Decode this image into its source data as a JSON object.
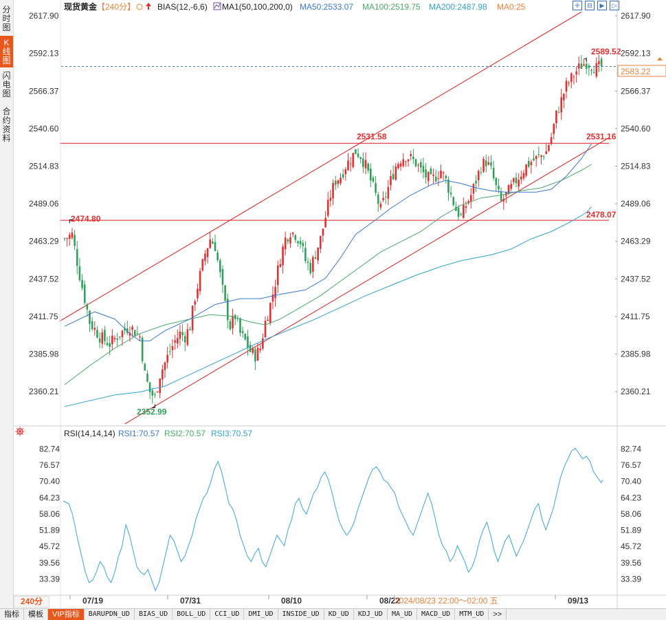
{
  "left_tabs": [
    {
      "label": "分时图",
      "active": false
    },
    {
      "label": "K线图",
      "active": true
    },
    {
      "label": "闪电图",
      "active": false
    },
    {
      "label": "合约资料",
      "active": false
    }
  ],
  "header": {
    "symbol": "现货黄金",
    "period_tag": "【240分】",
    "bias_label": "BIAS(12,-6,6)",
    "ma_label": "MA1(50,100,200,0)",
    "ma50": "MA50:2533.07",
    "ma100": "MA100:2519.75",
    "ma200": "MA200:2487.98",
    "ma0": "MA0:25"
  },
  "tool_icons": [
    "expand-icon",
    "contract-icon",
    "forward-icon",
    "step-icon"
  ],
  "price_axis_labels": [
    "2617.90",
    "2592.13",
    "2566.37",
    "2540.60",
    "2514.83",
    "2489.06",
    "2463.29",
    "2437.52",
    "2411.75",
    "2385.98",
    "2360.21"
  ],
  "rsi_header": {
    "title": "RSI(14,14,14)",
    "rsi1": "RSI1:70.57",
    "rsi2": "RSI2:70.57",
    "rsi3": "RSI3:70.57"
  },
  "rsi_axis_labels": [
    "82.74",
    "76.57",
    "70.40",
    "64.23",
    "58.06",
    "51.89",
    "45.72",
    "39.56",
    "33.39"
  ],
  "annotations": {
    "high": "2589.52",
    "current": "2583.22",
    "level_2531": "2531.58",
    "level_2531_right": "2531.16",
    "level_2474": "2474.80",
    "level_2478": "2478.07",
    "low": "2352.99"
  },
  "date_labels": [
    "07/19",
    "07/31",
    "08/10",
    "08/22",
    "09/13"
  ],
  "crosshair_time": "2024/08/23 22:00～02:00 五",
  "period_badge": "240分",
  "bottom_tabs": [
    {
      "label": "指标",
      "active": false,
      "mono": false
    },
    {
      "label": "模板",
      "active": false,
      "mono": false
    },
    {
      "label": "VIP指标",
      "active": true,
      "mono": false
    },
    {
      "label": "BARUPDN_UD",
      "active": false,
      "mono": true
    },
    {
      "label": "BIAS_UD",
      "active": false,
      "mono": true
    },
    {
      "label": "BOLL_UD",
      "active": false,
      "mono": true
    },
    {
      "label": "CCI_UD",
      "active": false,
      "mono": true
    },
    {
      "label": "DMI_UD",
      "active": false,
      "mono": true
    },
    {
      "label": "INSIDE_UD",
      "active": false,
      "mono": true
    },
    {
      "label": "KD_UD",
      "active": false,
      "mono": true
    },
    {
      "label": "KDJ_UD",
      "active": false,
      "mono": true
    },
    {
      "label": "MA_UD",
      "active": false,
      "mono": true
    },
    {
      "label": "MACD_UD",
      "active": false,
      "mono": true
    },
    {
      "label": "MTM_UD",
      "active": false,
      "mono": true
    },
    {
      "label": ">>",
      "active": false,
      "mono": false
    }
  ],
  "colors": {
    "up": "#e03030",
    "down": "#2fa05a",
    "ma50": "#3a78c9",
    "ma100": "#46a86a",
    "ma200": "#2fa3c9",
    "trend": "#d81e1e",
    "rsi": "#3aa3d6",
    "current_price": "#e8823a"
  },
  "chart_data": {
    "type": "candlestick",
    "period": "240分",
    "ylim": [
      2340.0,
      2625.0
    ],
    "x_dates": [
      "07/19",
      "07/31",
      "08/10",
      "08/22",
      "09/13"
    ],
    "close_path": [
      [
        0,
        2465
      ],
      [
        3,
        2468
      ],
      [
        6,
        2440
      ],
      [
        10,
        2408
      ],
      [
        14,
        2398
      ],
      [
        18,
        2393
      ],
      [
        22,
        2400
      ],
      [
        26,
        2405
      ],
      [
        30,
        2398
      ],
      [
        32,
        2372
      ],
      [
        34,
        2360
      ],
      [
        36,
        2356
      ],
      [
        38,
        2372
      ],
      [
        40,
        2380
      ],
      [
        42,
        2388
      ],
      [
        44,
        2395
      ],
      [
        46,
        2400
      ],
      [
        48,
        2398
      ],
      [
        50,
        2405
      ],
      [
        52,
        2425
      ],
      [
        54,
        2440
      ],
      [
        56,
        2455
      ],
      [
        58,
        2465
      ],
      [
        60,
        2460
      ],
      [
        62,
        2440
      ],
      [
        64,
        2420
      ],
      [
        66,
        2405
      ],
      [
        68,
        2412
      ],
      [
        70,
        2400
      ],
      [
        72,
        2395
      ],
      [
        74,
        2388
      ],
      [
        76,
        2385
      ],
      [
        78,
        2390
      ],
      [
        80,
        2408
      ],
      [
        82,
        2420
      ],
      [
        84,
        2435
      ],
      [
        86,
        2452
      ],
      [
        88,
        2465
      ],
      [
        90,
        2470
      ],
      [
        92,
        2468
      ],
      [
        94,
        2463
      ],
      [
        96,
        2450
      ],
      [
        98,
        2445
      ],
      [
        100,
        2455
      ],
      [
        102,
        2465
      ],
      [
        104,
        2480
      ],
      [
        106,
        2495
      ],
      [
        108,
        2505
      ],
      [
        110,
        2508
      ],
      [
        112,
        2515
      ],
      [
        114,
        2520
      ],
      [
        116,
        2525
      ],
      [
        118,
        2522
      ],
      [
        120,
        2515
      ],
      [
        122,
        2505
      ],
      [
        124,
        2495
      ],
      [
        126,
        2485
      ],
      [
        128,
        2495
      ],
      [
        130,
        2505
      ],
      [
        132,
        2515
      ],
      [
        134,
        2520
      ],
      [
        136,
        2522
      ],
      [
        138,
        2520
      ],
      [
        140,
        2517
      ],
      [
        142,
        2512
      ],
      [
        144,
        2508
      ],
      [
        146,
        2505
      ],
      [
        148,
        2508
      ],
      [
        150,
        2512
      ],
      [
        152,
        2505
      ],
      [
        154,
        2495
      ],
      [
        156,
        2485
      ],
      [
        158,
        2480
      ],
      [
        160,
        2488
      ],
      [
        162,
        2495
      ],
      [
        164,
        2505
      ],
      [
        166,
        2515
      ],
      [
        168,
        2518
      ],
      [
        170,
        2512
      ],
      [
        172,
        2500
      ],
      [
        174,
        2490
      ],
      [
        176,
        2495
      ],
      [
        178,
        2500
      ],
      [
        180,
        2505
      ],
      [
        182,
        2510
      ],
      [
        184,
        2515
      ],
      [
        186,
        2518
      ],
      [
        188,
        2520
      ],
      [
        190,
        2522
      ],
      [
        192,
        2525
      ],
      [
        194,
        2535
      ],
      [
        196,
        2550
      ],
      [
        198,
        2560
      ],
      [
        200,
        2570
      ],
      [
        202,
        2575
      ],
      [
        204,
        2580
      ],
      [
        206,
        2584
      ],
      [
        208,
        2586
      ],
      [
        210,
        2584
      ],
      [
        212,
        2582
      ],
      [
        214,
        2583
      ]
    ],
    "ma50_path": [
      [
        0,
        2405
      ],
      [
        12,
        2415
      ],
      [
        20,
        2410
      ],
      [
        26,
        2400
      ],
      [
        30,
        2395
      ],
      [
        34,
        2395
      ],
      [
        40,
        2402
      ],
      [
        50,
        2410
      ],
      [
        60,
        2420
      ],
      [
        70,
        2424
      ],
      [
        78,
        2424
      ],
      [
        86,
        2427
      ],
      [
        96,
        2430
      ],
      [
        104,
        2438
      ],
      [
        110,
        2452
      ],
      [
        116,
        2468
      ],
      [
        124,
        2478
      ],
      [
        130,
        2486
      ],
      [
        138,
        2495
      ],
      [
        146,
        2502
      ],
      [
        152,
        2505
      ],
      [
        158,
        2503
      ],
      [
        164,
        2500
      ],
      [
        170,
        2498
      ],
      [
        176,
        2497
      ],
      [
        182,
        2497
      ],
      [
        188,
        2497
      ],
      [
        194,
        2499
      ],
      [
        200,
        2508
      ],
      [
        206,
        2520
      ],
      [
        210,
        2530
      ]
    ],
    "ma100_path": [
      [
        0,
        2365
      ],
      [
        10,
        2378
      ],
      [
        20,
        2390
      ],
      [
        30,
        2400
      ],
      [
        40,
        2406
      ],
      [
        50,
        2410
      ],
      [
        58,
        2413
      ],
      [
        66,
        2412
      ],
      [
        74,
        2408
      ],
      [
        80,
        2406
      ],
      [
        86,
        2410
      ],
      [
        94,
        2418
      ],
      [
        102,
        2426
      ],
      [
        110,
        2436
      ],
      [
        118,
        2446
      ],
      [
        126,
        2456
      ],
      [
        134,
        2463
      ],
      [
        142,
        2470
      ],
      [
        150,
        2480
      ],
      [
        158,
        2488
      ],
      [
        166,
        2493
      ],
      [
        174,
        2495
      ],
      [
        182,
        2498
      ],
      [
        190,
        2500
      ],
      [
        198,
        2505
      ],
      [
        206,
        2512
      ],
      [
        210,
        2516
      ]
    ],
    "ma200_path": [
      [
        0,
        2350
      ],
      [
        10,
        2354
      ],
      [
        20,
        2358
      ],
      [
        30,
        2360
      ],
      [
        40,
        2364
      ],
      [
        50,
        2372
      ],
      [
        60,
        2380
      ],
      [
        70,
        2388
      ],
      [
        80,
        2396
      ],
      [
        90,
        2403
      ],
      [
        100,
        2410
      ],
      [
        110,
        2418
      ],
      [
        120,
        2426
      ],
      [
        130,
        2433
      ],
      [
        140,
        2440
      ],
      [
        150,
        2446
      ],
      [
        158,
        2450
      ],
      [
        164,
        2452
      ],
      [
        170,
        2454
      ],
      [
        178,
        2458
      ],
      [
        186,
        2465
      ],
      [
        194,
        2470
      ],
      [
        202,
        2477
      ],
      [
        208,
        2483
      ],
      [
        210,
        2487
      ]
    ],
    "trend_lines": [
      {
        "from": [
          -2,
          2408.5
        ],
        "to": [
          206,
          2620.6
        ]
      },
      {
        "from": [
          24,
          2338.1
        ],
        "to": [
          217,
          2534.4
        ]
      },
      {
        "from": [
          -2,
          2530.5
        ],
        "to": [
          217,
          2530.5
        ]
      },
      {
        "from": [
          -2,
          2477.7
        ],
        "to": [
          217,
          2477.7
        ]
      }
    ],
    "rsi_ylim": [
      28.0,
      86.0
    ],
    "rsi_path": [
      [
        0,
        63
      ],
      [
        3,
        62
      ],
      [
        5,
        58
      ],
      [
        8,
        48
      ],
      [
        10,
        42
      ],
      [
        12,
        36
      ],
      [
        14,
        32
      ],
      [
        16,
        33
      ],
      [
        18,
        36
      ],
      [
        20,
        40
      ],
      [
        22,
        38
      ],
      [
        24,
        34
      ],
      [
        26,
        32
      ],
      [
        28,
        36
      ],
      [
        30,
        42
      ],
      [
        32,
        46
      ],
      [
        34,
        54
      ],
      [
        36,
        50
      ],
      [
        38,
        44
      ],
      [
        40,
        38
      ],
      [
        42,
        36
      ],
      [
        44,
        35
      ],
      [
        46,
        37
      ],
      [
        48,
        33
      ],
      [
        50,
        29
      ],
      [
        52,
        32
      ],
      [
        54,
        38
      ],
      [
        56,
        44
      ],
      [
        58,
        50
      ],
      [
        60,
        48
      ],
      [
        62,
        44
      ],
      [
        64,
        40
      ],
      [
        66,
        42
      ],
      [
        68,
        46
      ],
      [
        70,
        50
      ],
      [
        72,
        56
      ],
      [
        74,
        60
      ],
      [
        76,
        64
      ],
      [
        78,
        66
      ],
      [
        80,
        70
      ],
      [
        82,
        75
      ],
      [
        84,
        78
      ],
      [
        86,
        74
      ],
      [
        88,
        68
      ],
      [
        90,
        62
      ],
      [
        92,
        60
      ],
      [
        94,
        56
      ],
      [
        96,
        50
      ],
      [
        98,
        46
      ],
      [
        100,
        42
      ],
      [
        102,
        40
      ],
      [
        104,
        43
      ],
      [
        106,
        45
      ],
      [
        108,
        40
      ],
      [
        110,
        38
      ],
      [
        112,
        42
      ],
      [
        114,
        46
      ],
      [
        116,
        50
      ],
      [
        118,
        48
      ],
      [
        120,
        46
      ],
      [
        122,
        52
      ],
      [
        124,
        56
      ],
      [
        126,
        62
      ],
      [
        128,
        64
      ],
      [
        130,
        60
      ],
      [
        132,
        58
      ],
      [
        134,
        62
      ],
      [
        136,
        66
      ],
      [
        138,
        68
      ],
      [
        140,
        72
      ],
      [
        142,
        74
      ],
      [
        144,
        71
      ],
      [
        146,
        66
      ],
      [
        148,
        60
      ],
      [
        150,
        55
      ],
      [
        152,
        52
      ],
      [
        154,
        50
      ],
      [
        156,
        52
      ],
      [
        158,
        55
      ],
      [
        160,
        60
      ],
      [
        162,
        64
      ],
      [
        164,
        68
      ],
      [
        166,
        72
      ],
      [
        168,
        75
      ],
      [
        170,
        76
      ],
      [
        172,
        74
      ],
      [
        174,
        71
      ],
      [
        176,
        70
      ],
      [
        178,
        68
      ],
      [
        180,
        66
      ],
      [
        182,
        61
      ],
      [
        184,
        58
      ],
      [
        186,
        55
      ],
      [
        188,
        52
      ],
      [
        190,
        50
      ],
      [
        192,
        54
      ],
      [
        194,
        58
      ],
      [
        196,
        62
      ],
      [
        198,
        66
      ],
      [
        200,
        62
      ],
      [
        202,
        56
      ],
      [
        204,
        50
      ],
      [
        206,
        46
      ],
      [
        208,
        44
      ],
      [
        210,
        40
      ],
      [
        212,
        42
      ],
      [
        214,
        46
      ],
      [
        216,
        43
      ],
      [
        218,
        40
      ],
      [
        220,
        36
      ],
      [
        222,
        38
      ],
      [
        224,
        42
      ],
      [
        226,
        48
      ],
      [
        228,
        52
      ],
      [
        230,
        55
      ],
      [
        232,
        50
      ],
      [
        234,
        44
      ],
      [
        236,
        40
      ],
      [
        238,
        44
      ],
      [
        240,
        48
      ],
      [
        242,
        50
      ],
      [
        244,
        46
      ],
      [
        246,
        42
      ],
      [
        248,
        45
      ],
      [
        250,
        48
      ],
      [
        252,
        52
      ],
      [
        254,
        56
      ],
      [
        256,
        60
      ],
      [
        258,
        62
      ],
      [
        260,
        56
      ],
      [
        262,
        52
      ],
      [
        264,
        56
      ],
      [
        266,
        60
      ],
      [
        268,
        66
      ],
      [
        270,
        72
      ],
      [
        272,
        76
      ],
      [
        274,
        79
      ],
      [
        276,
        82
      ],
      [
        278,
        83
      ],
      [
        280,
        81
      ],
      [
        282,
        79
      ],
      [
        284,
        80
      ],
      [
        286,
        78
      ],
      [
        288,
        74
      ],
      [
        290,
        72
      ],
      [
        292,
        70
      ],
      [
        293,
        71
      ]
    ]
  }
}
